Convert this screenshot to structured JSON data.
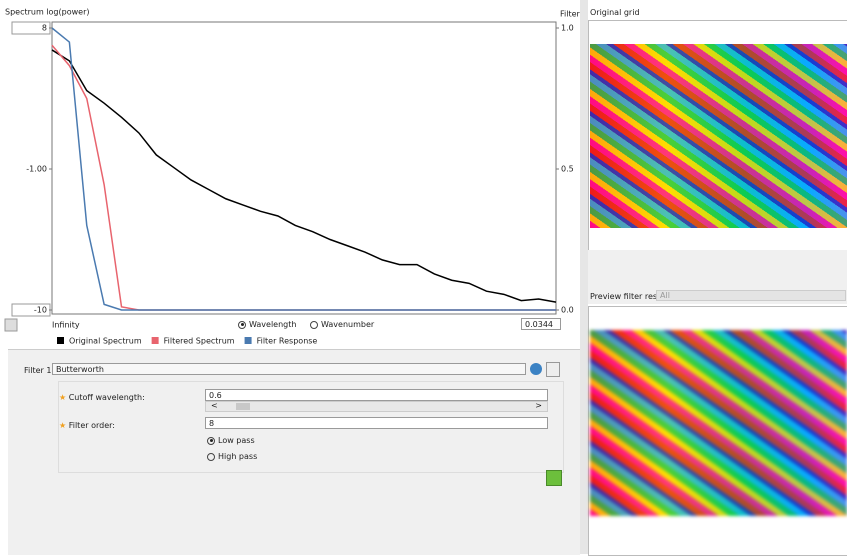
{
  "ui": {
    "left_panel": {
      "x_start_label": "Infinity",
      "wavelength_option": "Wavelength",
      "wavenumber_option": "Wavenumber",
      "x_end_input": "0.0344"
    },
    "filter": {
      "label": "Filter 1:",
      "type": "Butterworth",
      "cutoff_label": "Cutoff wavelength:",
      "cutoff_value": "0.6",
      "scroll_left": "<",
      "scroll_right": ">",
      "order_label": "Filter order:",
      "order_value": "8",
      "low_pass": "Low pass",
      "high_pass": "High pass"
    },
    "right_panel": {
      "original_title": "Original grid",
      "preview_label": "Preview filter result:",
      "preview_value": "All"
    }
  },
  "chart_data": {
    "type": "line",
    "y_label": "Spectrum log(power)",
    "y2_label": "Filter",
    "categories": [
      null,
      null,
      null,
      null,
      null,
      null,
      null,
      null,
      null,
      null,
      null,
      null,
      null,
      null,
      null,
      null,
      null,
      null,
      null,
      null,
      null,
      null,
      null,
      null,
      null,
      null,
      null,
      null,
      null,
      null
    ],
    "ylim": [
      -10,
      8
    ],
    "yticks": [
      -10,
      {
        "value": -1,
        "label": "-1.00"
      },
      8
    ],
    "y2lim": [
      0,
      1
    ],
    "y2ticks": [
      {
        "value": 0,
        "label": "0.0"
      },
      0.5,
      {
        "value": 1,
        "label": "1.0"
      }
    ],
    "series": [
      {
        "name": "Original Spectrum",
        "color": "#000000",
        "values": [
          6.6,
          5.9,
          4.0,
          3.2,
          2.3,
          1.3,
          -0.1,
          -0.9,
          -1.7,
          -2.3,
          -2.9,
          -3.3,
          -3.7,
          -4.0,
          -4.6,
          -5.0,
          -5.5,
          -5.9,
          -6.3,
          -6.8,
          -7.1,
          -7.1,
          -7.7,
          -8.1,
          -8.3,
          -8.8,
          -9.0,
          -9.4,
          -9.3,
          -9.5
        ]
      },
      {
        "name": "Filtered Spectrum",
        "color": "#e8646e",
        "values": [
          6.9,
          5.6,
          3.5,
          -2.0,
          -9.8,
          -10,
          -10,
          -10,
          -10,
          -10,
          -10,
          -10,
          -10,
          -10,
          -10,
          -10,
          -10,
          -10,
          -10,
          -10,
          -10,
          -10,
          -10,
          -10,
          -10,
          -10,
          -10,
          -10,
          -10,
          -10
        ]
      },
      {
        "name": "Filter Response",
        "color": "#4a7ab0",
        "axis": "y2",
        "values": [
          1,
          0.95,
          0.3,
          0.02,
          0,
          0,
          0,
          0,
          0,
          0,
          0,
          0,
          0,
          0,
          0,
          0,
          0,
          0,
          0,
          0,
          0,
          0,
          0,
          0,
          0,
          0,
          0,
          0,
          0,
          0
        ]
      }
    ]
  }
}
